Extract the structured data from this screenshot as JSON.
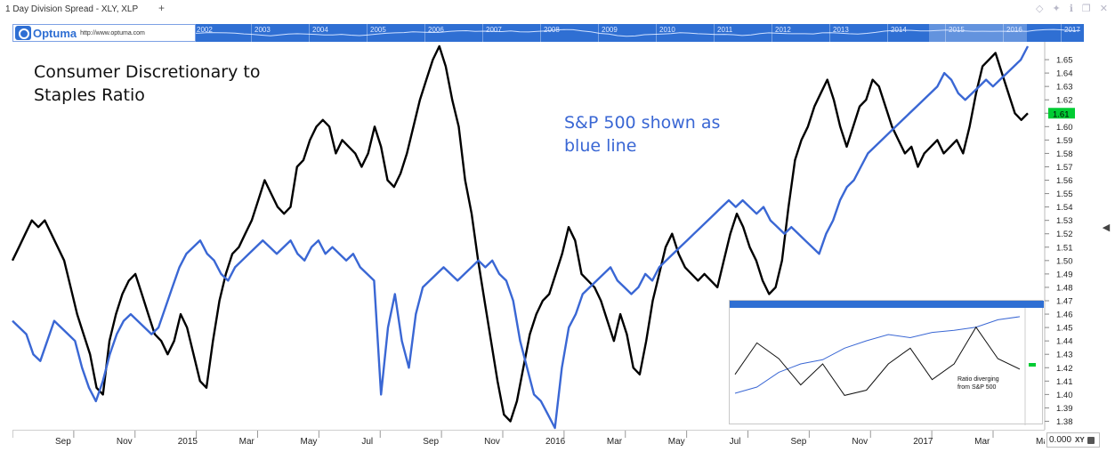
{
  "window": {
    "title": "1 Day Division Spread - XLY, XLP",
    "icons": [
      "diamond-icon",
      "pin-icon",
      "info-icon",
      "restore-icon",
      "close-icon"
    ]
  },
  "brand": {
    "name": "Optuma",
    "url": "http://www.optuma.com"
  },
  "overview": {
    "years": [
      "2002",
      "2003",
      "2004",
      "2005",
      "2006",
      "2007",
      "2008",
      "2009",
      "2010",
      "2011",
      "2012",
      "2013",
      "2014",
      "2015",
      "2016",
      "2017"
    ]
  },
  "annotations": {
    "title_line1": "Consumer Discretionary to",
    "title_line2": "Staples Ratio",
    "sp_line1": "S&P 500 shown as",
    "sp_line2": "blue line"
  },
  "colors": {
    "ratio": "#000000",
    "sp500": "#3a67d4",
    "annotation_text": "#3a67d4",
    "price_tag": "#00cc33",
    "overview_bg": "#2f6fd3"
  },
  "scale": {
    "value": "0.000",
    "mode": "XY"
  },
  "chart_data": {
    "type": "line",
    "ylim": [
      1.375,
      1.66
    ],
    "y_ticks": [
      "1.38",
      "1.39",
      "1.40",
      "1.41",
      "1.42",
      "1.43",
      "1.44",
      "1.45",
      "1.46",
      "1.47",
      "1.48",
      "1.49",
      "1.50",
      "1.51",
      "1.52",
      "1.53",
      "1.54",
      "1.55",
      "1.56",
      "1.57",
      "1.58",
      "1.59",
      "1.60",
      "1.61",
      "1.62",
      "1.63",
      "1.64",
      "1.65"
    ],
    "x_ticks": [
      "Sep",
      "Nov",
      "2015",
      "Mar",
      "May",
      "Jul",
      "Sep",
      "Nov",
      "2016",
      "Mar",
      "May",
      "Jul",
      "Sep",
      "Nov",
      "2017",
      "Mar",
      "May"
    ],
    "last_value_label": "1.61",
    "series": [
      {
        "values": [
          1.5,
          1.51,
          1.52,
          1.53,
          1.525,
          1.53,
          1.52,
          1.51,
          1.5,
          1.48,
          1.46,
          1.445,
          1.43,
          1.405,
          1.4,
          1.44,
          1.46,
          1.475,
          1.485,
          1.49,
          1.475,
          1.46,
          1.445,
          1.44,
          1.43,
          1.44,
          1.46,
          1.45,
          1.43,
          1.41,
          1.405,
          1.44,
          1.47,
          1.49,
          1.505,
          1.51,
          1.52,
          1.53,
          1.545,
          1.56,
          1.55,
          1.54,
          1.535,
          1.54,
          1.57,
          1.575,
          1.59,
          1.6,
          1.605,
          1.6,
          1.58,
          1.59,
          1.585,
          1.58,
          1.57,
          1.58,
          1.6,
          1.585,
          1.56,
          1.555,
          1.565,
          1.58,
          1.6,
          1.62,
          1.635,
          1.65,
          1.66,
          1.645,
          1.62,
          1.6,
          1.56,
          1.535,
          1.5,
          1.47,
          1.44,
          1.41,
          1.385,
          1.38,
          1.395,
          1.42,
          1.445,
          1.46,
          1.47,
          1.475,
          1.49,
          1.505,
          1.525,
          1.515,
          1.49,
          1.485,
          1.48,
          1.47,
          1.455,
          1.44,
          1.46,
          1.445,
          1.42,
          1.415,
          1.44,
          1.47,
          1.49,
          1.51,
          1.52,
          1.505,
          1.495,
          1.49,
          1.485,
          1.49,
          1.485,
          1.48,
          1.5,
          1.52,
          1.535,
          1.525,
          1.51,
          1.5,
          1.485,
          1.475,
          1.48,
          1.5,
          1.54,
          1.575,
          1.59,
          1.6,
          1.615,
          1.625,
          1.635,
          1.62,
          1.6,
          1.585,
          1.6,
          1.615,
          1.62,
          1.635,
          1.63,
          1.615,
          1.6,
          1.59,
          1.58,
          1.585,
          1.57,
          1.58,
          1.585,
          1.59,
          1.58,
          1.585,
          1.59,
          1.58,
          1.6,
          1.625,
          1.645,
          1.65,
          1.655,
          1.64,
          1.625,
          1.61,
          1.605,
          1.61
        ]
      },
      {
        "values": [
          1.455,
          1.45,
          1.445,
          1.43,
          1.425,
          1.44,
          1.455,
          1.45,
          1.445,
          1.44,
          1.42,
          1.405,
          1.395,
          1.41,
          1.43,
          1.445,
          1.455,
          1.46,
          1.455,
          1.45,
          1.445,
          1.45,
          1.465,
          1.48,
          1.495,
          1.505,
          1.51,
          1.515,
          1.505,
          1.5,
          1.49,
          1.485,
          1.495,
          1.5,
          1.505,
          1.51,
          1.515,
          1.51,
          1.505,
          1.51,
          1.515,
          1.505,
          1.5,
          1.51,
          1.515,
          1.505,
          1.51,
          1.505,
          1.5,
          1.505,
          1.495,
          1.49,
          1.485,
          1.4,
          1.45,
          1.475,
          1.44,
          1.42,
          1.46,
          1.48,
          1.485,
          1.49,
          1.495,
          1.49,
          1.485,
          1.49,
          1.495,
          1.5,
          1.495,
          1.5,
          1.49,
          1.485,
          1.47,
          1.44,
          1.42,
          1.4,
          1.395,
          1.385,
          1.375,
          1.42,
          1.45,
          1.46,
          1.475,
          1.48,
          1.485,
          1.49,
          1.495,
          1.485,
          1.48,
          1.475,
          1.48,
          1.49,
          1.485,
          1.495,
          1.5,
          1.505,
          1.51,
          1.515,
          1.52,
          1.525,
          1.53,
          1.535,
          1.54,
          1.545,
          1.54,
          1.545,
          1.54,
          1.535,
          1.54,
          1.53,
          1.525,
          1.52,
          1.525,
          1.52,
          1.515,
          1.51,
          1.505,
          1.52,
          1.53,
          1.545,
          1.555,
          1.56,
          1.57,
          1.58,
          1.585,
          1.59,
          1.595,
          1.6,
          1.605,
          1.61,
          1.615,
          1.62,
          1.625,
          1.63,
          1.64,
          1.635,
          1.625,
          1.62,
          1.625,
          1.63,
          1.635,
          1.63,
          1.635,
          1.64,
          1.645,
          1.65,
          1.66
        ]
      }
    ]
  },
  "inset": {
    "caption_line1": "Ratio diverging",
    "caption_line2": "from S&P 500"
  }
}
